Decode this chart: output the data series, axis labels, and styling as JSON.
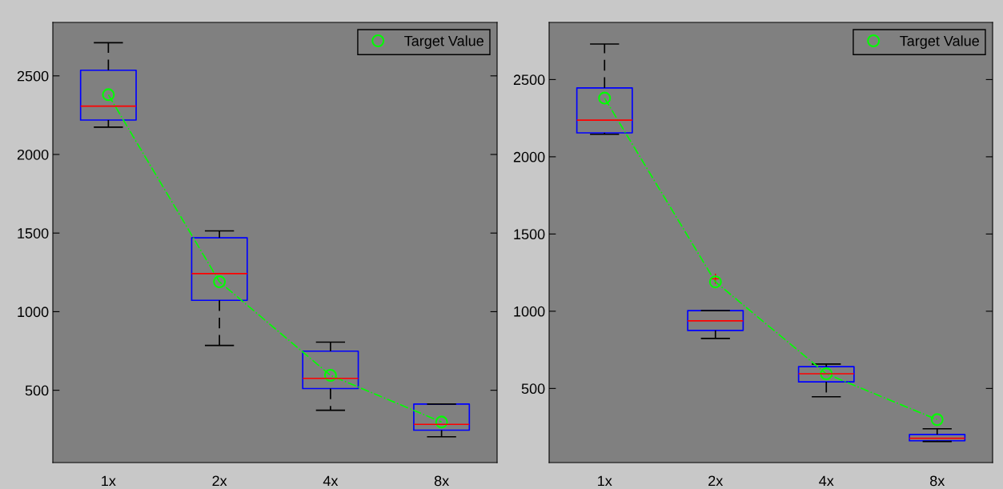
{
  "chart_data": [
    {
      "type": "box",
      "categories": [
        "1x",
        "2x",
        "4x",
        "8x"
      ],
      "ylim": [
        40,
        2840
      ],
      "yticks": [
        500,
        1000,
        1500,
        2000,
        2500
      ],
      "grid": false,
      "legend": "top right",
      "boxes": [
        {
          "low": 2174,
          "q1": 2219,
          "median": 2307,
          "q3": 2536,
          "high": 2711
        },
        {
          "low": 785,
          "q1": 1072,
          "median": 1242,
          "q3": 1470,
          "high": 1514
        },
        {
          "low": 373,
          "q1": 511,
          "median": 576,
          "q3": 749,
          "high": 806
        },
        {
          "low": 204,
          "q1": 246,
          "median": 283,
          "q3": 412,
          "high": 412
        }
      ],
      "series": [
        {
          "name": "Target Value",
          "type": "line",
          "color": "#00ff00",
          "x": [
            "1x",
            "2x",
            "4x",
            "8x"
          ],
          "values": [
            2380,
            1190,
            595,
            298
          ],
          "marker": "circle",
          "line_style": "dashdot"
        }
      ]
    },
    {
      "type": "box",
      "categories": [
        "1x",
        "2x",
        "4x",
        "8x"
      ],
      "ylim": [
        20,
        2870
      ],
      "yticks": [
        500,
        1000,
        1500,
        2000,
        2500
      ],
      "grid": false,
      "legend": "top right",
      "boxes": [
        {
          "low": 2146,
          "q1": 2155,
          "median": 2237,
          "q3": 2446,
          "high": 2730
        },
        {
          "low": 824,
          "q1": 876,
          "median": 938,
          "q3": 1004,
          "high": 1004,
          "outliers": [
            1210
          ]
        },
        {
          "low": 446,
          "q1": 543,
          "median": 595,
          "q3": 641,
          "high": 658
        },
        {
          "low": 157,
          "q1": 161,
          "median": 177,
          "q3": 202,
          "high": 239
        }
      ],
      "series": [
        {
          "name": "Target Value",
          "type": "line",
          "color": "#00ff00",
          "x": [
            "1x",
            "2x",
            "4x",
            "8x"
          ],
          "values": [
            2380,
            1190,
            595,
            298
          ],
          "marker": "circle",
          "line_style": "dashdot"
        }
      ]
    }
  ]
}
